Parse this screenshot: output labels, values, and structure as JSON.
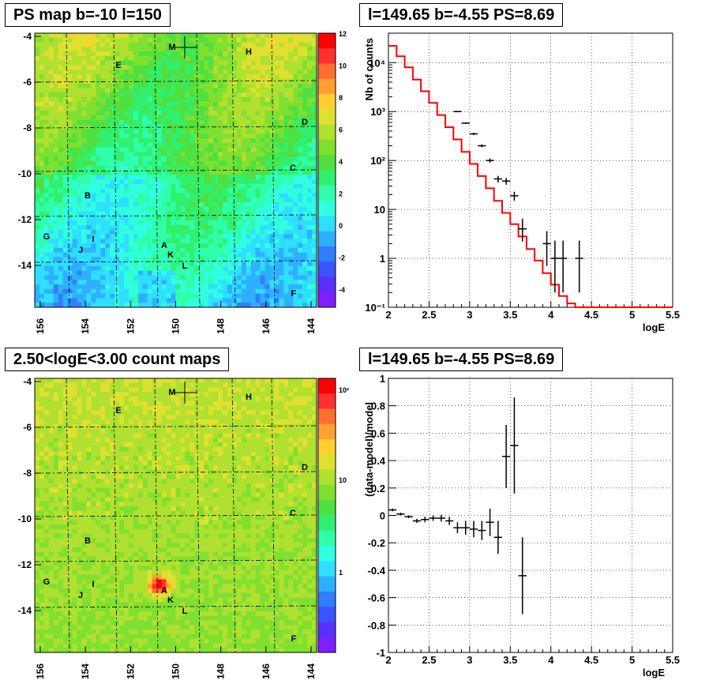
{
  "titles": {
    "ps_map": "PS map b=-10 l=150",
    "spectrum": "l=149.65 b=-4.55 PS=8.69",
    "count_map": "2.50<logE<3.00 count maps",
    "residual": "l=149.65 b=-4.55 PS=8.69"
  },
  "maps": {
    "x_ticks": [
      "156",
      "154",
      "152",
      "150",
      "148",
      "146",
      "144"
    ],
    "y_ticks": [
      "-4",
      "-6",
      "-8",
      "-10",
      "-12",
      "-14"
    ],
    "labels": [
      "M",
      "H",
      "E",
      "D",
      "C",
      "B",
      "G",
      "I",
      "J",
      "A",
      "K",
      "L",
      "F"
    ],
    "ps_colorbar_ticks": [
      "12",
      "10",
      "8",
      "6",
      "4",
      "2",
      "0",
      "-2",
      "-4"
    ],
    "count_colorbar_ticks": [
      "10²",
      "10",
      "1"
    ]
  },
  "chart_data": [
    {
      "type": "line",
      "title": "l=149.65 b=-4.55 PS=8.69",
      "xlabel": "logE",
      "ylabel": "Nb of counts",
      "yscale": "log",
      "xlim": [
        2,
        5.5
      ],
      "ylim": [
        0.1,
        40000
      ],
      "x_ticks": [
        "2",
        "2.5",
        "3",
        "3.5",
        "4",
        "4.5",
        "5",
        "5.5"
      ],
      "y_ticks": [
        "10⁻¹",
        "1",
        "10",
        "10²",
        "10³",
        "10⁴"
      ],
      "grid": true,
      "series": [
        {
          "role": "model",
          "color": "#ff0000",
          "bin_width": 0.1,
          "x": [
            2.05,
            2.15,
            2.25,
            2.35,
            2.45,
            2.55,
            2.65,
            2.75,
            2.85,
            2.95,
            3.05,
            3.15,
            3.25,
            3.35,
            3.45,
            3.55,
            3.65,
            3.75,
            3.85,
            3.95,
            4.05,
            4.15,
            4.25,
            4.35,
            4.45,
            4.55,
            4.65,
            4.75,
            4.85,
            4.95,
            5.05,
            5.15,
            5.25,
            5.35,
            5.45
          ],
          "y": [
            22000,
            13500,
            8000,
            4500,
            2600,
            1500,
            850,
            480,
            270,
            150,
            85,
            48,
            27,
            15,
            8.5,
            5,
            2.8,
            1.55,
            0.9,
            0.5,
            0.29,
            0.17,
            0.12,
            0.1,
            0.1,
            0.1,
            0.1,
            0.1,
            0.1,
            0.1,
            0.1,
            0.1,
            0.1,
            0.1,
            0.1
          ]
        },
        {
          "role": "data",
          "color": "#000000",
          "x": [
            2.85,
            2.95,
            3.05,
            3.15,
            3.25,
            3.35,
            3.45,
            3.55,
            3.65,
            3.95,
            4.05,
            4.15,
            4.35
          ],
          "y": [
            1000,
            580,
            350,
            200,
            100,
            42,
            38,
            19,
            4,
            2,
            1,
            1,
            1
          ],
          "yerr_low": [
            32,
            24,
            19,
            14,
            10,
            6.5,
            6,
            4,
            1.8,
            1.3,
            0.8,
            0.8,
            0.8
          ],
          "yerr_high": [
            32,
            24,
            19,
            14,
            10,
            6.5,
            6,
            4,
            2.5,
            1.6,
            1.3,
            1.3,
            1.3
          ]
        }
      ]
    },
    {
      "type": "scatter",
      "title": "l=149.65 b=-4.55 PS=8.69",
      "xlabel": "logE",
      "ylabel": "(data-model)/model",
      "xlim": [
        2,
        5.5
      ],
      "ylim": [
        -1,
        1
      ],
      "x_ticks": [
        "2",
        "2.5",
        "3",
        "3.5",
        "4",
        "4.5",
        "5",
        "5.5"
      ],
      "y_ticks": [
        "1",
        "0.8",
        "0.6",
        "0.4",
        "0.2",
        "0",
        "-0.2",
        "-0.4",
        "-0.6",
        "-0.8",
        "-1"
      ],
      "grid": true,
      "series": [
        {
          "role": "residual",
          "color": "#000000",
          "x": [
            2.05,
            2.15,
            2.25,
            2.35,
            2.45,
            2.55,
            2.65,
            2.75,
            2.85,
            2.95,
            3.05,
            3.15,
            3.25,
            3.35,
            3.45,
            3.55,
            3.65
          ],
          "y": [
            0.04,
            0.01,
            -0.01,
            -0.04,
            -0.03,
            -0.02,
            -0.02,
            -0.04,
            -0.09,
            -0.09,
            -0.1,
            -0.11,
            -0.05,
            -0.16,
            0.43,
            0.51,
            -0.44
          ],
          "yerr": [
            0.01,
            0.01,
            0.01,
            0.015,
            0.02,
            0.02,
            0.025,
            0.03,
            0.04,
            0.05,
            0.06,
            0.07,
            0.1,
            0.12,
            0.23,
            0.35,
            0.28
          ]
        }
      ]
    }
  ]
}
